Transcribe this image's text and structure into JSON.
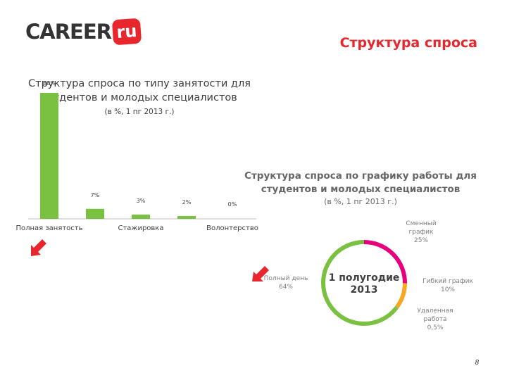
{
  "header": {
    "logo_text": "CAREER",
    "logo_badge": "ru",
    "slide_title": "Структура спроса",
    "page_number": "8"
  },
  "colors": {
    "accent": "#e8262d",
    "bar": "#7ac142",
    "ring_green": "#7ac142",
    "ring_magenta": "#e6007e",
    "ring_orange": "#f7a823"
  },
  "chart_data": [
    {
      "type": "bar",
      "title": "Структура спроса по типу занятости для студентов и молодых специалистов",
      "subtitle": "(в %, 1 пг 2013 г.)",
      "categories": [
        "Полная занятость",
        "",
        "Стажировка",
        "",
        "Волонтерство"
      ],
      "values": [
        88,
        7,
        3,
        2,
        0
      ],
      "data_labels": [
        "88%",
        "7%",
        "3%",
        "2%",
        "0%"
      ],
      "x_tick_labels": [
        "Полная занятость",
        "Стажировка",
        "Волонтерство"
      ],
      "ylim": [
        0,
        100
      ],
      "grid": false
    },
    {
      "type": "pie",
      "title": "Структура спроса по графику работы для студентов и молодых специалистов",
      "subtitle": "(в %, 1 пг 2013 г.)",
      "center_label": [
        "1 полугодие",
        "2013"
      ],
      "slices": [
        {
          "label": [
            "Полный день",
            "64%"
          ],
          "value": 64
        },
        {
          "label": [
            "Сменный",
            "график",
            "25%"
          ],
          "value": 25
        },
        {
          "label": [
            "Гибкий график",
            "10%"
          ],
          "value": 10
        },
        {
          "label": [
            "Удаленная",
            "работа",
            "0,5%"
          ],
          "value": 0.5
        }
      ]
    }
  ]
}
